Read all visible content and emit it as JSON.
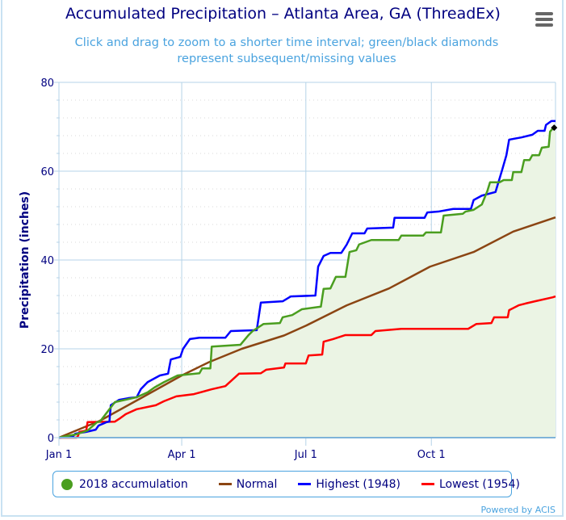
{
  "title": "Accumulated Precipitation – Atlanta Area, GA (ThreadEx)",
  "subtitle": "Click and drag to zoom to a shorter time interval; green/black diamonds represent subsequent/missing values",
  "menu_icon": "hamburger-menu-icon",
  "credit": "Powered by ACIS",
  "legend": [
    {
      "label": "2018 accumulation",
      "color": "#4a9e1f",
      "symbol": "circle"
    },
    {
      "label": "Normal",
      "color": "#8b4513",
      "symbol": "line"
    },
    {
      "label": "Highest (1948)",
      "color": "#0000ff",
      "symbol": "line"
    },
    {
      "label": "Lowest (1954)",
      "color": "#ff0000",
      "symbol": "line"
    }
  ],
  "chart_data": {
    "type": "line",
    "title": "Accumulated Precipitation – Atlanta Area, GA (ThreadEx)",
    "xlabel": "",
    "ylabel": "Precipitation (inches)",
    "ylim": [
      0,
      80
    ],
    "yticks": [
      "0",
      "20",
      "40",
      "60",
      "80"
    ],
    "xticks": [
      {
        "label": "Jan 1",
        "date": "01-01"
      },
      {
        "label": "Apr 1",
        "date": "04-01"
      },
      {
        "label": "Jul 1",
        "date": "07-01"
      },
      {
        "label": "Oct 1",
        "date": "10-01"
      }
    ],
    "xlim": [
      "01-01",
      "12-31"
    ],
    "grid": true,
    "legend_position": "bottom",
    "fill_color": "#ebf4e4",
    "series": [
      {
        "name": "2018 accumulation",
        "color": "#4a9e1f",
        "fill": true,
        "points": [
          [
            "01-01",
            0
          ],
          [
            "01-13",
            0.7
          ],
          [
            "01-22",
            1.6
          ],
          [
            "01-29",
            3.5
          ],
          [
            "01-31",
            3.6
          ],
          [
            "02-11",
            8
          ],
          [
            "02-27",
            9.1
          ],
          [
            "03-07",
            10.2
          ],
          [
            "03-12",
            11.3
          ],
          [
            "03-19",
            12.5
          ],
          [
            "03-29",
            14
          ],
          [
            "04-14",
            14.5
          ],
          [
            "04-16",
            15.6
          ],
          [
            "04-22",
            15.6
          ],
          [
            "04-23",
            20.5
          ],
          [
            "05-14",
            20.9
          ],
          [
            "05-20",
            23.1
          ],
          [
            "05-23",
            24
          ],
          [
            "05-31",
            25.6
          ],
          [
            "06-12",
            25.8
          ],
          [
            "06-14",
            27.1
          ],
          [
            "06-21",
            27.6
          ],
          [
            "06-28",
            28.9
          ],
          [
            "07-12",
            29.5
          ],
          [
            "07-14",
            33.5
          ],
          [
            "07-19",
            33.6
          ],
          [
            "07-23",
            36.2
          ],
          [
            "07-30",
            36.2
          ],
          [
            "08-02",
            41.8
          ],
          [
            "08-07",
            42.2
          ],
          [
            "08-09",
            43.5
          ],
          [
            "08-18",
            44.5
          ],
          [
            "09-07",
            44.5
          ],
          [
            "09-09",
            45.5
          ],
          [
            "09-25",
            45.5
          ],
          [
            "09-27",
            46.2
          ],
          [
            "10-08",
            46.2
          ],
          [
            "10-10",
            50
          ],
          [
            "10-24",
            50.4
          ],
          [
            "10-26",
            50.9
          ],
          [
            "11-01",
            51.3
          ],
          [
            "11-07",
            52.5
          ],
          [
            "11-11",
            55.5
          ],
          [
            "11-13",
            57.5
          ],
          [
            "11-20",
            57.5
          ],
          [
            "11-23",
            58
          ],
          [
            "11-29",
            58
          ],
          [
            "11-30",
            59.8
          ],
          [
            "12-06",
            59.8
          ],
          [
            "12-08",
            62.5
          ],
          [
            "12-12",
            62.5
          ],
          [
            "12-14",
            63.6
          ],
          [
            "12-19",
            63.6
          ],
          [
            "12-21",
            65.3
          ],
          [
            "12-26",
            65.5
          ],
          [
            "12-27",
            68.9
          ],
          [
            "12-29",
            69.6
          ]
        ],
        "missing_marker": [
          "12-30",
          69.8
        ]
      },
      {
        "name": "Normal",
        "color": "#8b4513",
        "points": [
          [
            "01-01",
            0
          ],
          [
            "01-31",
            3.8
          ],
          [
            "03-01",
            8.7
          ],
          [
            "04-01",
            14
          ],
          [
            "04-21",
            17
          ],
          [
            "05-15",
            20
          ],
          [
            "06-15",
            23
          ],
          [
            "07-01",
            25.2
          ],
          [
            "07-31",
            29.8
          ],
          [
            "08-31",
            33.6
          ],
          [
            "09-30",
            38.5
          ],
          [
            "11-01",
            41.8
          ],
          [
            "11-30",
            46.4
          ],
          [
            "12-31",
            49.6
          ]
        ]
      },
      {
        "name": "Highest (1948)",
        "color": "#0000ff",
        "points": [
          [
            "01-01",
            0
          ],
          [
            "01-11",
            0.2
          ],
          [
            "01-13",
            0.9
          ],
          [
            "01-21",
            1.3
          ],
          [
            "01-28",
            1.8
          ],
          [
            "01-30",
            2.7
          ],
          [
            "02-05",
            3.5
          ],
          [
            "02-07",
            3.6
          ],
          [
            "02-08",
            7.3
          ],
          [
            "02-14",
            8.5
          ],
          [
            "02-21",
            8.9
          ],
          [
            "02-27",
            9.1
          ],
          [
            "03-02",
            10.9
          ],
          [
            "03-07",
            12.5
          ],
          [
            "03-16",
            14
          ],
          [
            "03-22",
            14.4
          ],
          [
            "03-24",
            17.6
          ],
          [
            "03-31",
            18.2
          ],
          [
            "04-02",
            20
          ],
          [
            "04-07",
            22.2
          ],
          [
            "04-14",
            22.5
          ],
          [
            "05-03",
            22.5
          ],
          [
            "05-07",
            24
          ],
          [
            "05-26",
            24.2
          ],
          [
            "05-29",
            30.4
          ],
          [
            "06-14",
            30.7
          ],
          [
            "06-20",
            31.8
          ],
          [
            "07-08",
            32
          ],
          [
            "07-10",
            38.5
          ],
          [
            "07-14",
            40.9
          ],
          [
            "07-19",
            41.6
          ],
          [
            "07-27",
            41.6
          ],
          [
            "07-31",
            43.5
          ],
          [
            "08-04",
            46
          ],
          [
            "08-13",
            46
          ],
          [
            "08-15",
            47.1
          ],
          [
            "09-03",
            47.3
          ],
          [
            "09-04",
            49.5
          ],
          [
            "09-26",
            49.5
          ],
          [
            "09-28",
            50.7
          ],
          [
            "10-06",
            50.9
          ],
          [
            "10-17",
            51.5
          ],
          [
            "10-30",
            51.5
          ],
          [
            "11-01",
            53.5
          ],
          [
            "11-07",
            54.5
          ],
          [
            "11-17",
            55.3
          ],
          [
            "11-22",
            60.4
          ],
          [
            "11-25",
            63.6
          ],
          [
            "11-27",
            67.1
          ],
          [
            "12-06",
            67.6
          ],
          [
            "12-14",
            68.2
          ],
          [
            "12-18",
            69.1
          ],
          [
            "12-23",
            69.1
          ],
          [
            "12-24",
            70.4
          ],
          [
            "12-28",
            71.3
          ],
          [
            "12-31",
            71.3
          ]
        ]
      },
      {
        "name": "Lowest (1954)",
        "color": "#ff0000",
        "points": [
          [
            "01-01",
            0
          ],
          [
            "01-14",
            0
          ],
          [
            "01-15",
            0.4
          ],
          [
            "01-16",
            1.3
          ],
          [
            "01-21",
            1.6
          ],
          [
            "01-22",
            3.5
          ],
          [
            "02-11",
            3.6
          ],
          [
            "02-15",
            4.4
          ],
          [
            "02-19",
            5.3
          ],
          [
            "02-27",
            6.4
          ],
          [
            "03-13",
            7.3
          ],
          [
            "03-19",
            8.2
          ],
          [
            "03-28",
            9.3
          ],
          [
            "04-10",
            9.8
          ],
          [
            "04-23",
            10.9
          ],
          [
            "05-03",
            11.6
          ],
          [
            "05-13",
            14.4
          ],
          [
            "05-29",
            14.5
          ],
          [
            "06-02",
            15.3
          ],
          [
            "06-15",
            15.8
          ],
          [
            "06-16",
            16.7
          ],
          [
            "07-01",
            16.7
          ],
          [
            "07-03",
            18.5
          ],
          [
            "07-13",
            18.7
          ],
          [
            "07-14",
            21.6
          ],
          [
            "07-21",
            22.2
          ],
          [
            "07-30",
            23.1
          ],
          [
            "08-18",
            23.1
          ],
          [
            "08-21",
            24
          ],
          [
            "09-09",
            24.5
          ],
          [
            "10-28",
            24.5
          ],
          [
            "11-03",
            25.6
          ],
          [
            "11-14",
            25.8
          ],
          [
            "11-16",
            27.1
          ],
          [
            "11-26",
            27.1
          ],
          [
            "11-27",
            28.7
          ],
          [
            "12-04",
            29.8
          ],
          [
            "12-09",
            30.2
          ],
          [
            "12-16",
            30.7
          ],
          [
            "12-29",
            31.6
          ],
          [
            "12-31",
            31.8
          ]
        ]
      }
    ]
  }
}
